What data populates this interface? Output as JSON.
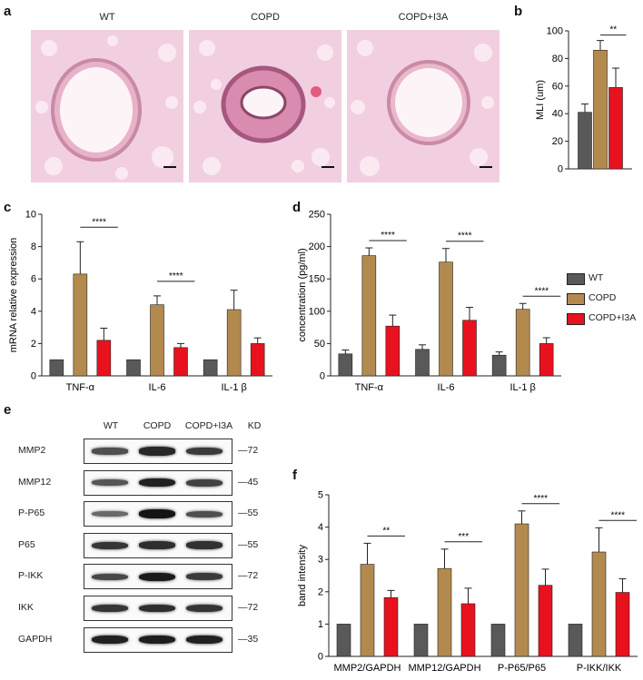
{
  "panels": {
    "a": {
      "letter": "a",
      "titles": [
        "WT",
        "COPD",
        "COPD+I3A"
      ]
    },
    "b": {
      "letter": "b",
      "ylabel": "MLI (um)",
      "sig": [
        "**"
      ]
    },
    "c": {
      "letter": "c",
      "ylabel": "mRNA relative expression",
      "sig": [
        "****",
        "****"
      ]
    },
    "d": {
      "letter": "d",
      "ylabel": "concentration (pg/ml)",
      "sig": [
        "****",
        "****",
        "****"
      ]
    },
    "e": {
      "letter": "e",
      "lanes": [
        "WT",
        "COPD",
        "COPD+I3A"
      ],
      "kd_header": "KD",
      "rows": [
        {
          "label": "MMP2",
          "kd": "72",
          "intensity": [
            0.55,
            0.85,
            0.7
          ]
        },
        {
          "label": "MMP12",
          "kd": "45",
          "intensity": [
            0.5,
            0.9,
            0.65
          ]
        },
        {
          "label": "P-P65",
          "kd": "55",
          "intensity": [
            0.35,
            1.0,
            0.55
          ]
        },
        {
          "label": "P65",
          "kd": "55",
          "intensity": [
            0.75,
            0.8,
            0.78
          ]
        },
        {
          "label": "P-IKK",
          "kd": "72",
          "intensity": [
            0.6,
            0.95,
            0.7
          ]
        },
        {
          "label": "IKK",
          "kd": "72",
          "intensity": [
            0.75,
            0.8,
            0.75
          ]
        },
        {
          "label": "GAPDH",
          "kd": "35",
          "intensity": [
            0.9,
            0.92,
            0.9
          ]
        }
      ]
    },
    "f": {
      "letter": "f",
      "ylabel": "band intensity",
      "sig": [
        "**",
        "***",
        "****",
        "****"
      ]
    }
  },
  "legend": {
    "items": [
      {
        "label": "WT",
        "color": "#595959"
      },
      {
        "label": "COPD",
        "color": "#b38a4e"
      },
      {
        "label": "COPD+I3A",
        "color": "#e8121e"
      }
    ]
  },
  "colors": {
    "wt": "#595959",
    "copd": "#b38a4e",
    "i3a": "#e8121e",
    "histology": "#f1cfe0"
  },
  "chart_data": [
    {
      "panel": "b",
      "type": "bar",
      "categories": [
        ""
      ],
      "series": [
        {
          "name": "WT",
          "values": [
            41
          ],
          "errors": [
            6
          ]
        },
        {
          "name": "COPD",
          "values": [
            86
          ],
          "errors": [
            7
          ]
        },
        {
          "name": "COPD+I3A",
          "values": [
            59
          ],
          "errors": [
            14
          ]
        }
      ],
      "ylabel": "MLI (um)",
      "ylim": [
        0,
        100
      ],
      "yticks": [
        0,
        20,
        40,
        60,
        80,
        100
      ]
    },
    {
      "panel": "c",
      "type": "bar",
      "categories": [
        "TNF-α",
        "IL-6",
        "IL-1 β"
      ],
      "series": [
        {
          "name": "WT",
          "values": [
            1.0,
            1.0,
            1.0
          ],
          "errors": [
            0,
            0,
            0
          ]
        },
        {
          "name": "COPD",
          "values": [
            6.3,
            4.4,
            4.1
          ],
          "errors": [
            2.0,
            0.55,
            1.2
          ]
        },
        {
          "name": "COPD+I3A",
          "values": [
            2.2,
            1.75,
            2.0
          ],
          "errors": [
            0.75,
            0.25,
            0.35
          ]
        }
      ],
      "ylabel": "mRNA relative expression",
      "ylim": [
        0,
        10
      ],
      "yticks": [
        0,
        2,
        4,
        6,
        8,
        10
      ]
    },
    {
      "panel": "d",
      "type": "bar",
      "categories": [
        "TNF-α",
        "IL-6",
        "IL-1 β"
      ],
      "series": [
        {
          "name": "WT",
          "values": [
            34,
            41,
            32
          ],
          "errors": [
            6,
            7,
            5
          ]
        },
        {
          "name": "COPD",
          "values": [
            186,
            176,
            103
          ],
          "errors": [
            12,
            21,
            9
          ]
        },
        {
          "name": "COPD+I3A",
          "values": [
            77,
            86,
            50
          ],
          "errors": [
            17,
            20,
            9
          ]
        }
      ],
      "ylabel": "concentration (pg/ml)",
      "ylim": [
        0,
        250
      ],
      "yticks": [
        0,
        50,
        100,
        150,
        200,
        250
      ]
    },
    {
      "panel": "f",
      "type": "bar",
      "categories": [
        "MMP2/GAPDH",
        "MMP12/GAPDH",
        "P-P65/P65",
        "P-IKK/IKK"
      ],
      "series": [
        {
          "name": "WT",
          "values": [
            1.0,
            1.0,
            1.0,
            1.0
          ],
          "errors": [
            0,
            0,
            0,
            0
          ]
        },
        {
          "name": "COPD",
          "values": [
            2.85,
            2.72,
            4.1,
            3.23
          ],
          "errors": [
            0.65,
            0.6,
            0.4,
            0.75
          ]
        },
        {
          "name": "COPD+I3A",
          "values": [
            1.82,
            1.63,
            2.2,
            1.98
          ],
          "errors": [
            0.22,
            0.48,
            0.5,
            0.42
          ]
        }
      ],
      "ylabel": "band intensity",
      "ylim": [
        0,
        5
      ],
      "yticks": [
        0,
        1,
        2,
        3,
        4,
        5
      ]
    }
  ]
}
